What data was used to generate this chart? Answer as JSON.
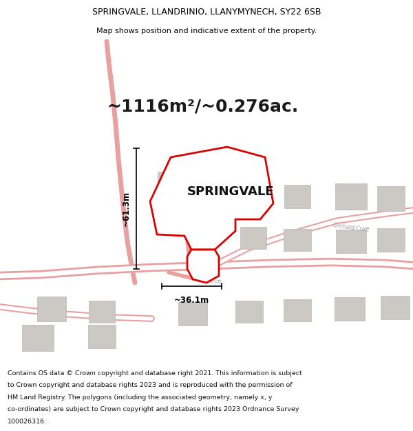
{
  "title_line1": "SPRINGVALE, LLANDRINIO, LLANYMYNECH, SY22 6SB",
  "title_line2": "Map shows position and indicative extent of the property.",
  "area_text": "~1116m²/~0.276ac.",
  "property_label": "SPRINGVALE",
  "dim_vertical": "~61.3m",
  "dim_horizontal": "~36.1m",
  "footer_lines": [
    "Contains OS data © Crown copyright and database right 2021. This information is subject",
    "to Crown copyright and database rights 2023 and is reproduced with the permission of",
    "HM Land Registry. The polygons (including the associated geometry, namely x, y",
    "co-ordinates) are subject to Crown copyright and database rights 2023 Ordnance Survey",
    "100026316."
  ],
  "bg_color": "#ffffff",
  "map_bg": "#faf8f7",
  "road_color": "#e8a0a0",
  "building_color": "#ccc8c4",
  "building_edge": "#bbb8b4",
  "plot_border_color": "#dd0000",
  "dim_line_color": "#000000",
  "road_text_color": "#999999"
}
